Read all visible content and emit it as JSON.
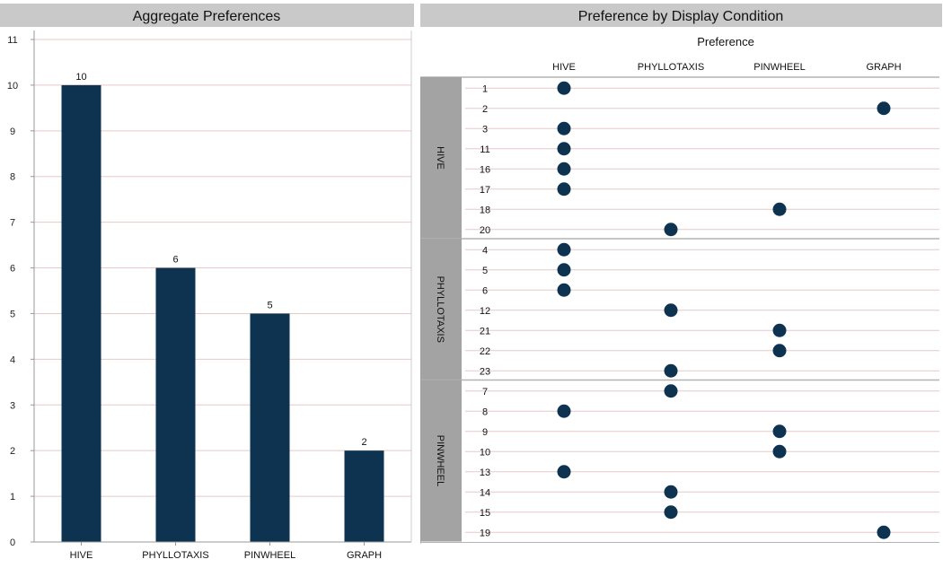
{
  "chart_data": [
    {
      "type": "bar",
      "title": "Aggregate Preferences",
      "categories": [
        "HIVE",
        "PHYLLOTAXIS",
        "PINWHEEL",
        "GRAPH"
      ],
      "values": [
        10,
        6,
        5,
        2
      ],
      "data_labels": [
        "10",
        "6",
        "5",
        "2"
      ],
      "y_ticks": [
        "0",
        "1",
        "2",
        "3",
        "4",
        "5",
        "6",
        "7",
        "8",
        "9",
        "10",
        "11"
      ],
      "ylim": [
        0,
        11
      ],
      "grid": true,
      "bar_color": "#0d3350"
    },
    {
      "type": "scatter",
      "title": "Preference by Display Condition",
      "x_title": "Preference",
      "x_categories": [
        "HIVE",
        "PHYLLOTAXIS",
        "PINWHEEL",
        "GRAPH"
      ],
      "groups": [
        {
          "name": "HIVE",
          "rows": [
            {
              "id": "1",
              "preference": "HIVE"
            },
            {
              "id": "2",
              "preference": "GRAPH"
            },
            {
              "id": "3",
              "preference": "HIVE"
            },
            {
              "id": "11",
              "preference": "HIVE"
            },
            {
              "id": "16",
              "preference": "HIVE"
            },
            {
              "id": "17",
              "preference": "HIVE"
            },
            {
              "id": "18",
              "preference": "PINWHEEL"
            },
            {
              "id": "20",
              "preference": "PHYLLOTAXIS"
            }
          ]
        },
        {
          "name": "PHYLLOTAXIS",
          "rows": [
            {
              "id": "4",
              "preference": "HIVE"
            },
            {
              "id": "5",
              "preference": "HIVE"
            },
            {
              "id": "6",
              "preference": "HIVE"
            },
            {
              "id": "12",
              "preference": "PHYLLOTAXIS"
            },
            {
              "id": "21",
              "preference": "PINWHEEL"
            },
            {
              "id": "22",
              "preference": "PINWHEEL"
            },
            {
              "id": "23",
              "preference": "PHYLLOTAXIS"
            }
          ]
        },
        {
          "name": "PINWHEEL",
          "rows": [
            {
              "id": "7",
              "preference": "PHYLLOTAXIS"
            },
            {
              "id": "8",
              "preference": "HIVE"
            },
            {
              "id": "9",
              "preference": "PINWHEEL"
            },
            {
              "id": "10",
              "preference": "PINWHEEL"
            },
            {
              "id": "13",
              "preference": "HIVE"
            },
            {
              "id": "14",
              "preference": "PHYLLOTAXIS"
            },
            {
              "id": "15",
              "preference": "PHYLLOTAXIS"
            },
            {
              "id": "19",
              "preference": "GRAPH"
            }
          ]
        }
      ],
      "marker_color": "#0d3350",
      "grid": true
    }
  ],
  "colors": {
    "header_bg": "#c9c9c9",
    "group_label_bg": "#a3a3a3",
    "grid": "#e8c9c9",
    "separator": "#b3b3b3"
  }
}
